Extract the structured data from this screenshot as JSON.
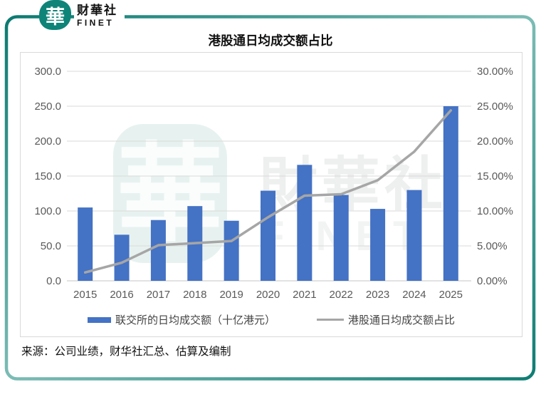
{
  "header": {
    "logo_emblem_char": "華",
    "logo_name_cn": "财華社",
    "logo_name_en": "FINET"
  },
  "title": "港股通日均成交额占比",
  "chart_data": {
    "type": "bar",
    "subtype": "combo-bar-line",
    "title": "港股通日均成交额占比",
    "categories": [
      "2015",
      "2016",
      "2017",
      "2018",
      "2019",
      "2020",
      "2021",
      "2022",
      "2023",
      "2024",
      "2025"
    ],
    "series": [
      {
        "name": "联交所的日均成交额（十亿港元）",
        "type": "bar",
        "axis": "left",
        "values": [
          105,
          66,
          87,
          107,
          86,
          129,
          166,
          123,
          103,
          130,
          250
        ],
        "color": "#4472C4"
      },
      {
        "name": "港股通日均成交额占比",
        "type": "line",
        "axis": "right",
        "unit": "%",
        "values": [
          1.2,
          2.6,
          5.1,
          5.4,
          5.7,
          9.1,
          12.2,
          12.4,
          14.4,
          18.5,
          24.4
        ],
        "color": "#A6A6A6"
      }
    ],
    "left_axis": {
      "min": 0,
      "max": 300,
      "step": 50,
      "tick_labels": [
        "0.0",
        "50.0",
        "100.0",
        "150.0",
        "200.0",
        "250.0",
        "300.0"
      ]
    },
    "right_axis": {
      "min": 0,
      "max": 30,
      "step": 5,
      "tick_labels": [
        "0.00%",
        "5.00%",
        "10.00%",
        "15.00%",
        "20.00%",
        "25.00%",
        "30.00%"
      ]
    },
    "grid": true,
    "legend_position": "bottom"
  },
  "legend": {
    "bar_label": "联交所的日均成交额（十亿港元）",
    "line_label": "港股通日均成交额占比"
  },
  "source": "来源：公司业绩，财华社汇总、估算及编制",
  "watermark": {
    "emblem_char": "華",
    "text_cn": "財華社",
    "text_en": "FINET"
  },
  "colors": {
    "brand_teal": "#0e8478",
    "frame_teal_dark": "#0b7a71",
    "frame_teal_light": "#7cbcb5",
    "bar_blue": "#4472C4",
    "line_gray": "#A6A6A6",
    "grid_gray": "#d9d9d9",
    "tick_text": "#595959"
  }
}
